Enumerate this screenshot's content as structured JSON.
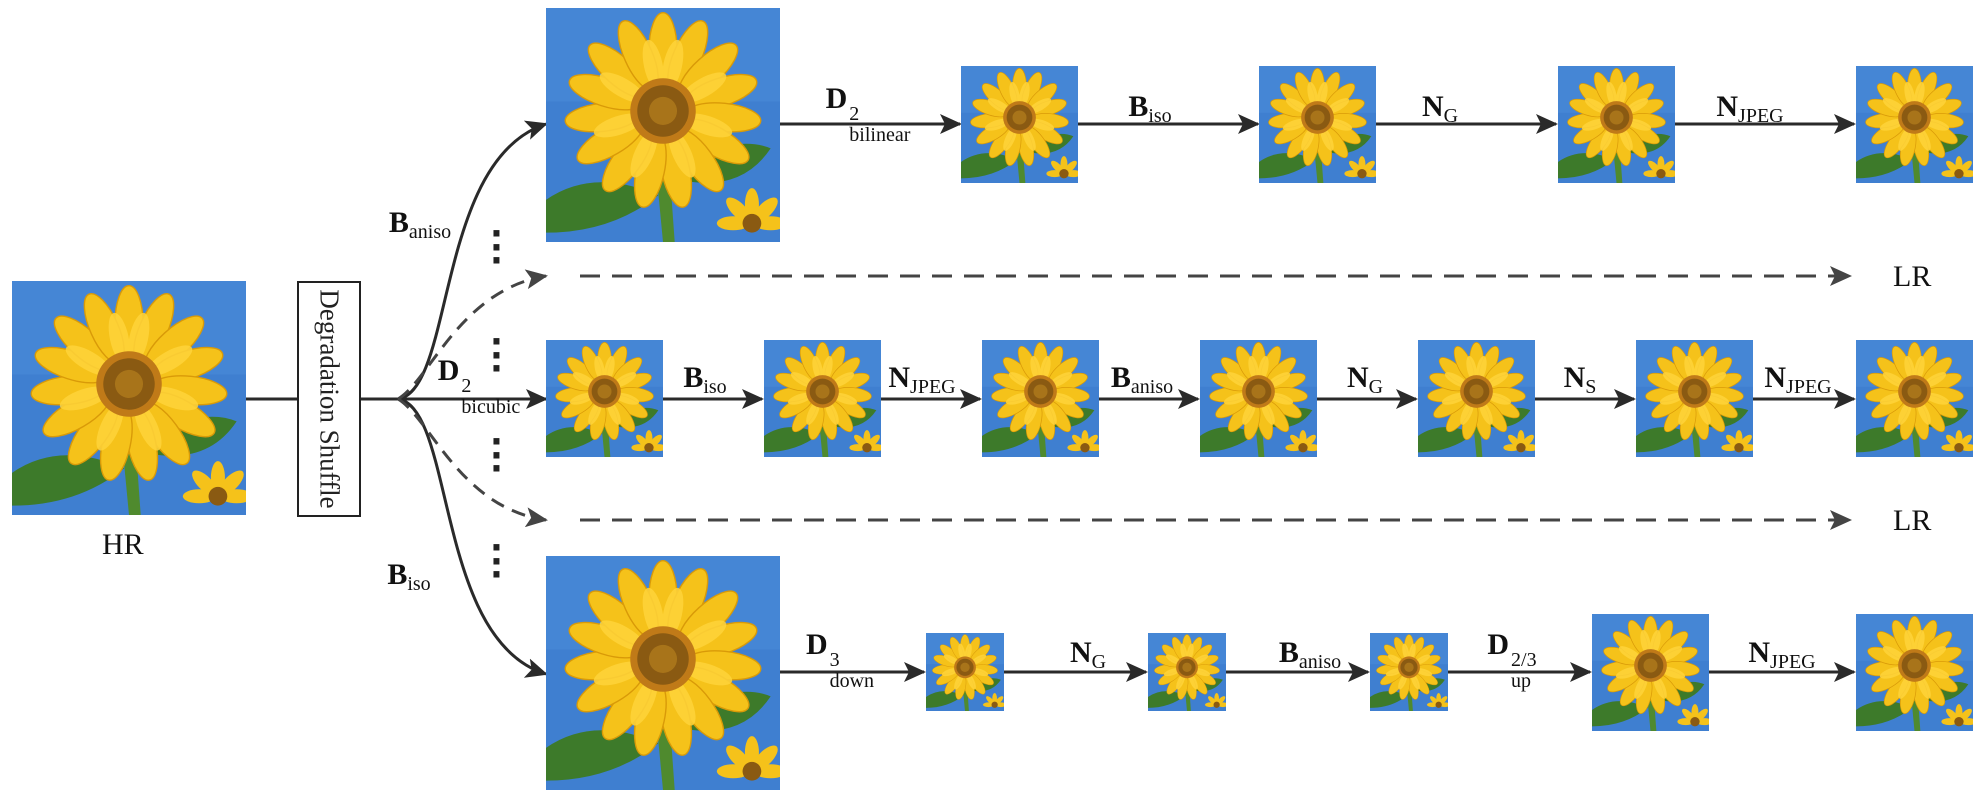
{
  "labels": {
    "hr": "HR",
    "lr_top": "LR",
    "lr_bottom": "LR",
    "shuffle": "Degradation Shuffle"
  },
  "branch_labels": {
    "top": {
      "base": "B",
      "sub": "aniso"
    },
    "middle": {
      "base": "D",
      "sub": "bicubic",
      "sup": "2"
    },
    "bottom": {
      "base": "B",
      "sub": "iso"
    }
  },
  "rows": [
    {
      "name": "top-row",
      "ops": [
        {
          "base": "D",
          "sub": "bilinear",
          "sup": "2"
        },
        {
          "base": "B",
          "sub": "iso"
        },
        {
          "base": "N",
          "sub": "G"
        },
        {
          "base": "N",
          "sub": "JPEG"
        }
      ]
    },
    {
      "name": "middle-row",
      "ops": [
        {
          "base": "B",
          "sub": "iso"
        },
        {
          "base": "N",
          "sub": "JPEG"
        },
        {
          "base": "B",
          "sub": "aniso"
        },
        {
          "base": "N",
          "sub": "G"
        },
        {
          "base": "N",
          "sub": "S"
        },
        {
          "base": "N",
          "sub": "JPEG"
        }
      ]
    },
    {
      "name": "bottom-row",
      "ops": [
        {
          "base": "D",
          "sub": "down",
          "sup": "3"
        },
        {
          "base": "N",
          "sub": "G"
        },
        {
          "base": "B",
          "sub": "aniso"
        },
        {
          "base": "D",
          "sub": "up",
          "sup": "2/3"
        },
        {
          "base": "N",
          "sub": "JPEG"
        }
      ]
    }
  ],
  "colors": {
    "sky": "#3f7fd0",
    "petal": "#f5c21a",
    "petal_dark": "#e2a10c",
    "center": "#8a5a12",
    "center_ring": "#c07a18",
    "leaf": "#3d7a2a",
    "line": "#2a2a2a",
    "dash": "#444444"
  }
}
